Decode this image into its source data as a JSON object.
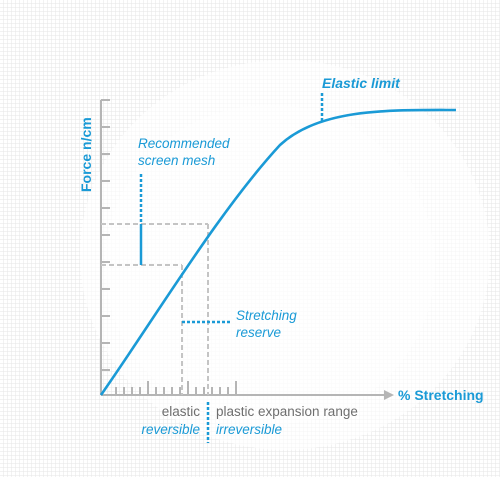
{
  "diagram": {
    "y_axis_label": "Force n/cm",
    "x_axis_label": "% Stretching",
    "annotations": {
      "elastic_limit": "Elastic limit",
      "recommended_line1": "Recommended",
      "recommended_line2": "screen mesh",
      "stretching_reserve_line1": "Stretching",
      "stretching_reserve_line2": "reserve"
    },
    "regions": {
      "left_top": "elastic",
      "left_bottom": "reversible",
      "right_top": "plastic expansion range",
      "right_bottom": "irreversible"
    },
    "colors": {
      "accent": "#1a9ad6",
      "axis": "#b5b5b5",
      "guide": "#c4c4c4",
      "text_grey": "#6e6e6e",
      "grid_background": "#ebebeb"
    }
  }
}
